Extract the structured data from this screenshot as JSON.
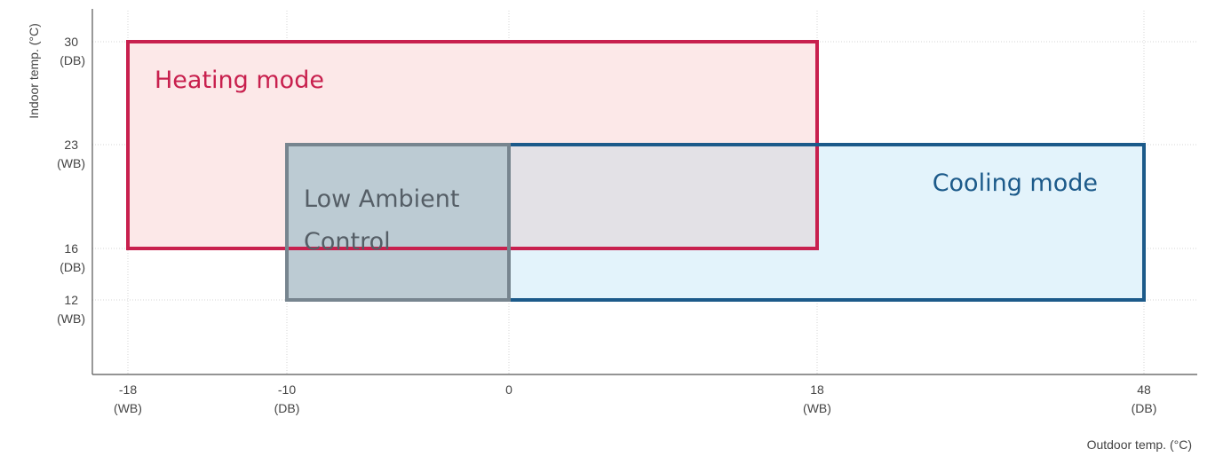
{
  "chart_data": {
    "type": "area",
    "xlabel": "Outdoor temp. (°C)",
    "ylabel": "Indoor temp. (°C)",
    "x_ticks": [
      {
        "value": -18,
        "label": "-18",
        "sub": "(WB)"
      },
      {
        "value": -10,
        "label": "-10",
        "sub": "(DB)"
      },
      {
        "value": 0,
        "label": "0",
        "sub": ""
      },
      {
        "value": 18,
        "label": "18",
        "sub": "(WB)"
      },
      {
        "value": 48,
        "label": "48",
        "sub": "(DB)"
      }
    ],
    "y_ticks": [
      {
        "value": 30,
        "label": "30",
        "sub": "(DB)"
      },
      {
        "value": 23,
        "label": "23",
        "sub": "(WB)"
      },
      {
        "value": 16,
        "label": "16",
        "sub": "(DB)"
      },
      {
        "value": 12,
        "label": "12",
        "sub": "(WB)"
      }
    ],
    "regions": [
      {
        "name": "Heating mode",
        "x_range": [
          -18,
          18
        ],
        "y_range": [
          16,
          30
        ],
        "fill": "#fce8e8",
        "stroke": "#c8204e",
        "label_color": "#c8204e"
      },
      {
        "name": "Cooling mode",
        "x_range": [
          0,
          48
        ],
        "y_range": [
          12,
          23
        ],
        "fill": "#e3f3fb",
        "stroke": "#1c5a8a",
        "label_color": "#1c5a8a"
      },
      {
        "name": "Low Ambient\nControl",
        "x_range": [
          -10,
          0
        ],
        "y_range": [
          12,
          23
        ],
        "fill": "#bccbd3",
        "stroke": "#77858f",
        "label_color": "#555e66"
      }
    ],
    "overlap_fill": "#e3e1e6",
    "grid": true
  }
}
